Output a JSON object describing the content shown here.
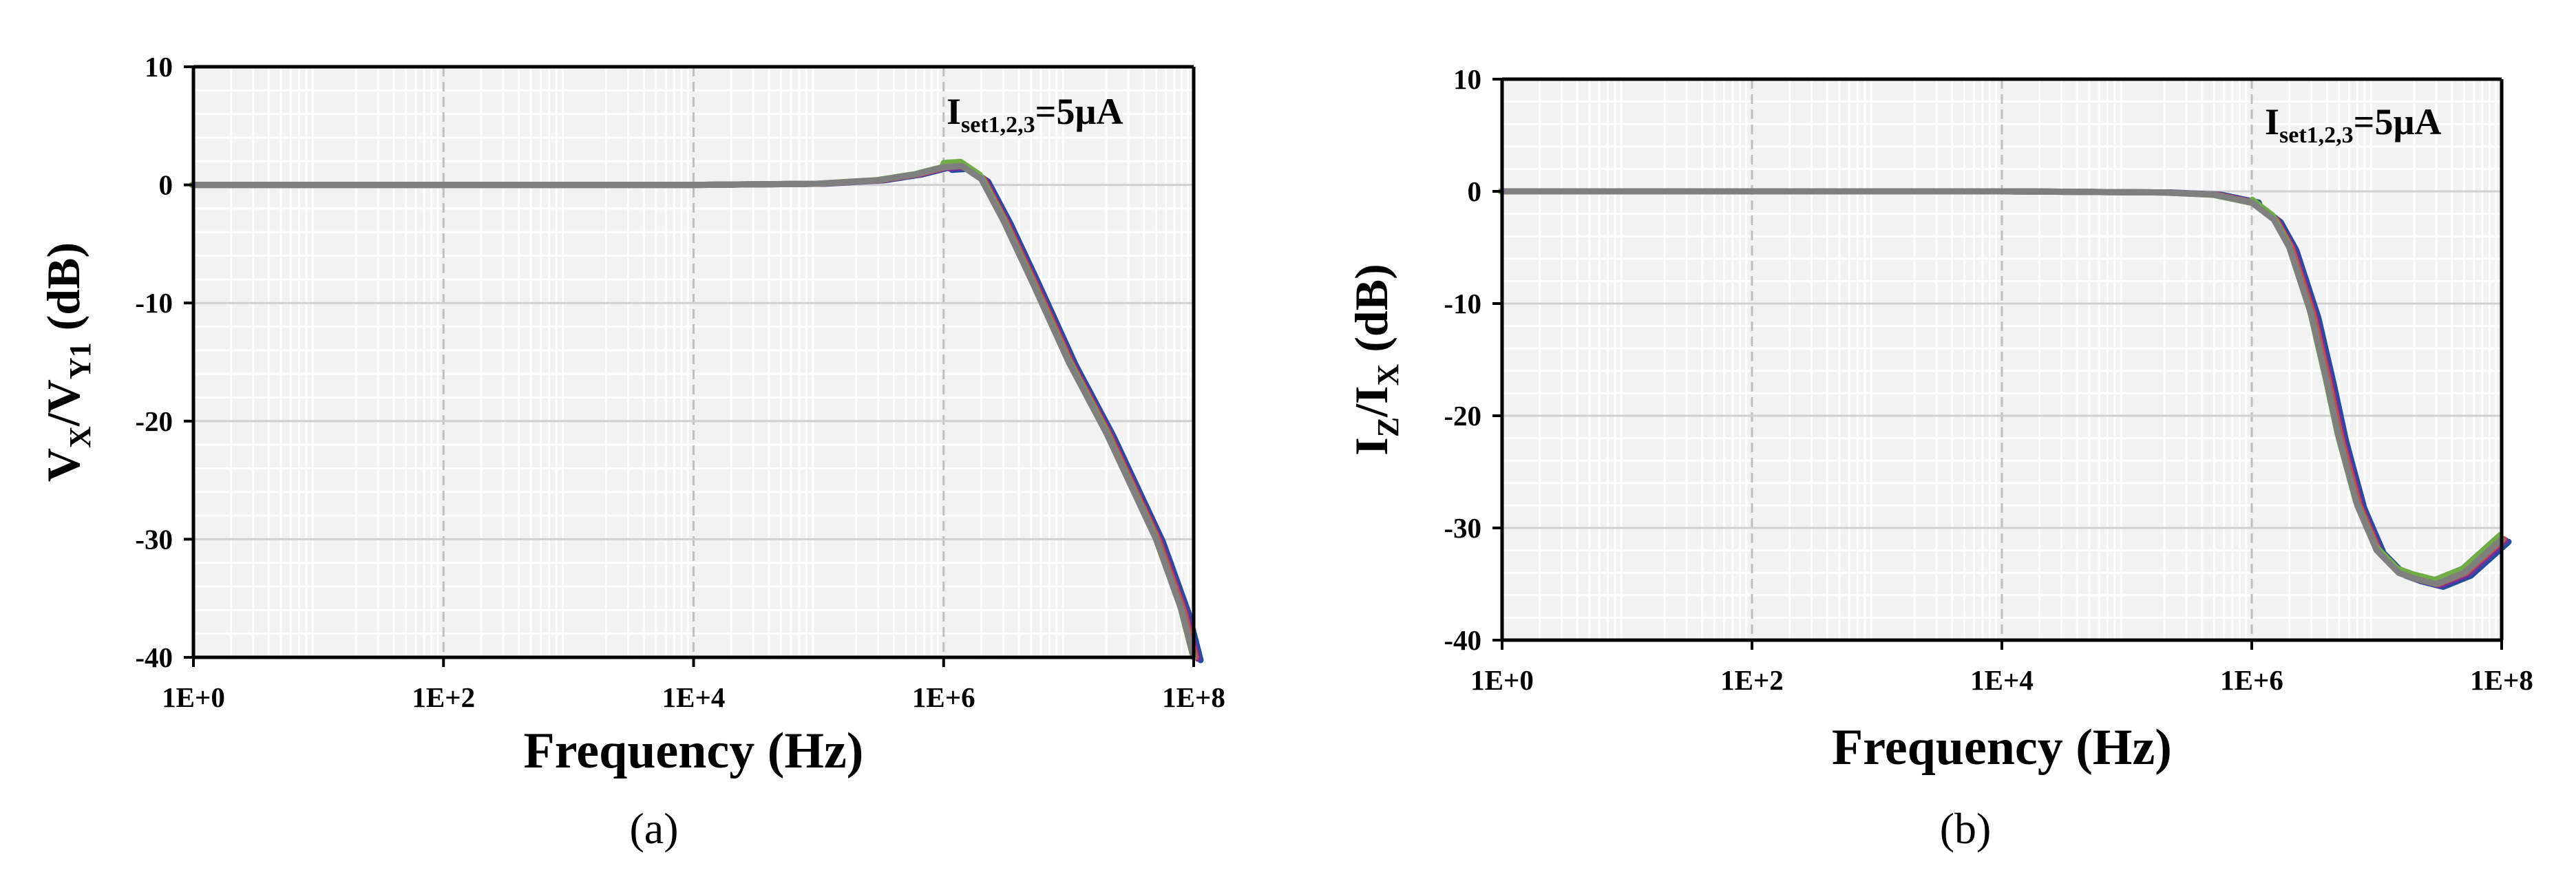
{
  "chart_data": [
    {
      "type": "line",
      "panel_label": "(a)",
      "ylabel": {
        "p1": "V",
        "s1": "X",
        "p2": "/V",
        "s2": "Y1",
        "p3": " (dB)"
      },
      "xlabel": "Frequency (Hz)",
      "annotation": {
        "main": "I",
        "sub": "set1,2,3",
        "rest": "=5µA"
      },
      "xscale": "log",
      "xlim": [
        1,
        100000000
      ],
      "ylim": [
        -40,
        10
      ],
      "xticks": [
        "1E+0",
        "1E+2",
        "1E+4",
        "1E+6",
        "1E+8"
      ],
      "yticks": [
        "10",
        "0",
        "-10",
        "-20",
        "-30",
        "-40"
      ],
      "grid": true,
      "colors": [
        "#1f4e9c",
        "#7030a0",
        "#c0504d",
        "#70ad47",
        "#7f7f7f"
      ],
      "series": [
        {
          "x": [
            1,
            100,
            10000,
            100000,
            300000,
            600000,
            1000000,
            1400000,
            2000000,
            3000000,
            5000000,
            10000000,
            20000000,
            50000000,
            80000000,
            100000000
          ],
          "y": [
            0,
            0,
            0,
            0.1,
            0.4,
            0.9,
            1.5,
            1.6,
            0.5,
            -3,
            -8,
            -15,
            -21,
            -30,
            -36,
            -40
          ]
        }
      ]
    },
    {
      "type": "line",
      "panel_label": "(b)",
      "ylabel": {
        "p1": "I",
        "s1": "Z",
        "p2": "/I",
        "s2": "X",
        "p3": " (dB)"
      },
      "xlabel": "Frequency (Hz)",
      "annotation": {
        "main": "I",
        "sub": "set1,2,3",
        "rest": "=5µA"
      },
      "xscale": "log",
      "xlim": [
        1,
        100000000
      ],
      "ylim": [
        -40,
        10
      ],
      "xticks": [
        "1E+0",
        "1E+2",
        "1E+4",
        "1E+6",
        "1E+8"
      ],
      "yticks": [
        "10",
        "0",
        "-10",
        "-20",
        "-30",
        "-40"
      ],
      "grid": true,
      "colors": [
        "#1f4e9c",
        "#7030a0",
        "#c0504d",
        "#70ad47",
        "#7f7f7f"
      ],
      "series": [
        {
          "x": [
            1,
            100,
            10000,
            200000,
            500000,
            1000000,
            1500000,
            2000000,
            3000000,
            4000000,
            5000000,
            7000000,
            10000000,
            15000000,
            20000000,
            30000000,
            50000000,
            100000000
          ],
          "y": [
            0,
            0,
            0,
            -0.1,
            -0.3,
            -1,
            -2.5,
            -5,
            -11,
            -17,
            -22,
            -28,
            -32,
            -34,
            -34.5,
            -35,
            -34,
            -31
          ]
        }
      ]
    }
  ]
}
